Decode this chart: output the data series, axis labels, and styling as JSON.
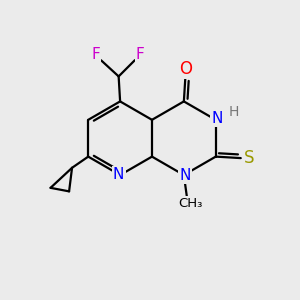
{
  "bg_color": "#ebebeb",
  "bond_color": "#000000",
  "bond_width": 1.6,
  "atom_colors": {
    "N": "#0000ff",
    "O": "#ff0000",
    "S": "#999900",
    "F": "#cc00cc",
    "H": "#777777",
    "C": "#000000"
  },
  "font_size": 11,
  "fig_size": [
    3.0,
    3.0
  ],
  "dpi": 100
}
